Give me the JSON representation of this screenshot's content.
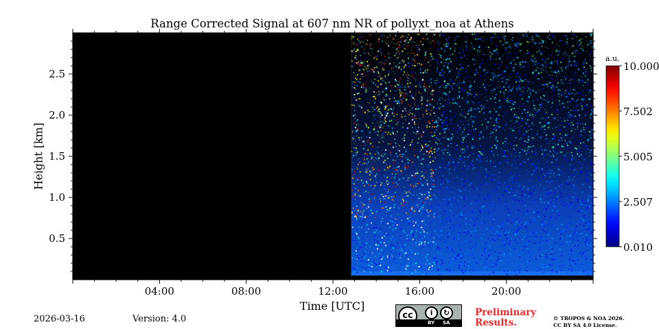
{
  "chart_data": {
    "type": "heatmap",
    "title": "Range Corrected Signal at 607 nm NR of pollyxt_noa at Athens",
    "xlabel": "Time [UTC]",
    "ylabel": "Height [km]",
    "xlim_hours": [
      0,
      24
    ],
    "ylim_km": [
      0,
      3.0
    ],
    "xticks": [
      {
        "value": 4,
        "label": "04:00"
      },
      {
        "value": 8,
        "label": "08:00"
      },
      {
        "value": 12,
        "label": "12:00"
      },
      {
        "value": 16,
        "label": "16:00"
      },
      {
        "value": 20,
        "label": "20:00"
      }
    ],
    "yticks": [
      {
        "value": 0.5,
        "label": "0.5"
      },
      {
        "value": 1.0,
        "label": "1.0"
      },
      {
        "value": 1.5,
        "label": "1.5"
      },
      {
        "value": 2.0,
        "label": "2.0"
      },
      {
        "value": 2.5,
        "label": "2.5"
      }
    ],
    "no_data_interval_hours": [
      0,
      12.85
    ],
    "measurement_start_hours": 12.85,
    "high_noise_end_hours": 16.7,
    "colorbar": {
      "unit": "a.u.",
      "min": 0.01,
      "max": 10.0,
      "tick_values": [
        0.01,
        2.507,
        5.005,
        7.502,
        10.0
      ],
      "tick_labels": [
        "0.010",
        "2.507",
        "5.005",
        "7.502",
        "10.000"
      ],
      "colormap": "jet"
    }
  },
  "footer": {
    "date": "2026-03-16",
    "version": "Version: 4.0",
    "preliminary_line1": "Preliminary",
    "preliminary_line2": "Results.",
    "copyright_line1": "© TROPOS & NOA 2026.",
    "copyright_line2": "CC BY SA 4.0 License.",
    "license_by": "BY",
    "license_sa": "SA",
    "license_cc": "cc"
  },
  "colors": {
    "prelim": "#e8292b",
    "background_no_data": "#000000"
  }
}
